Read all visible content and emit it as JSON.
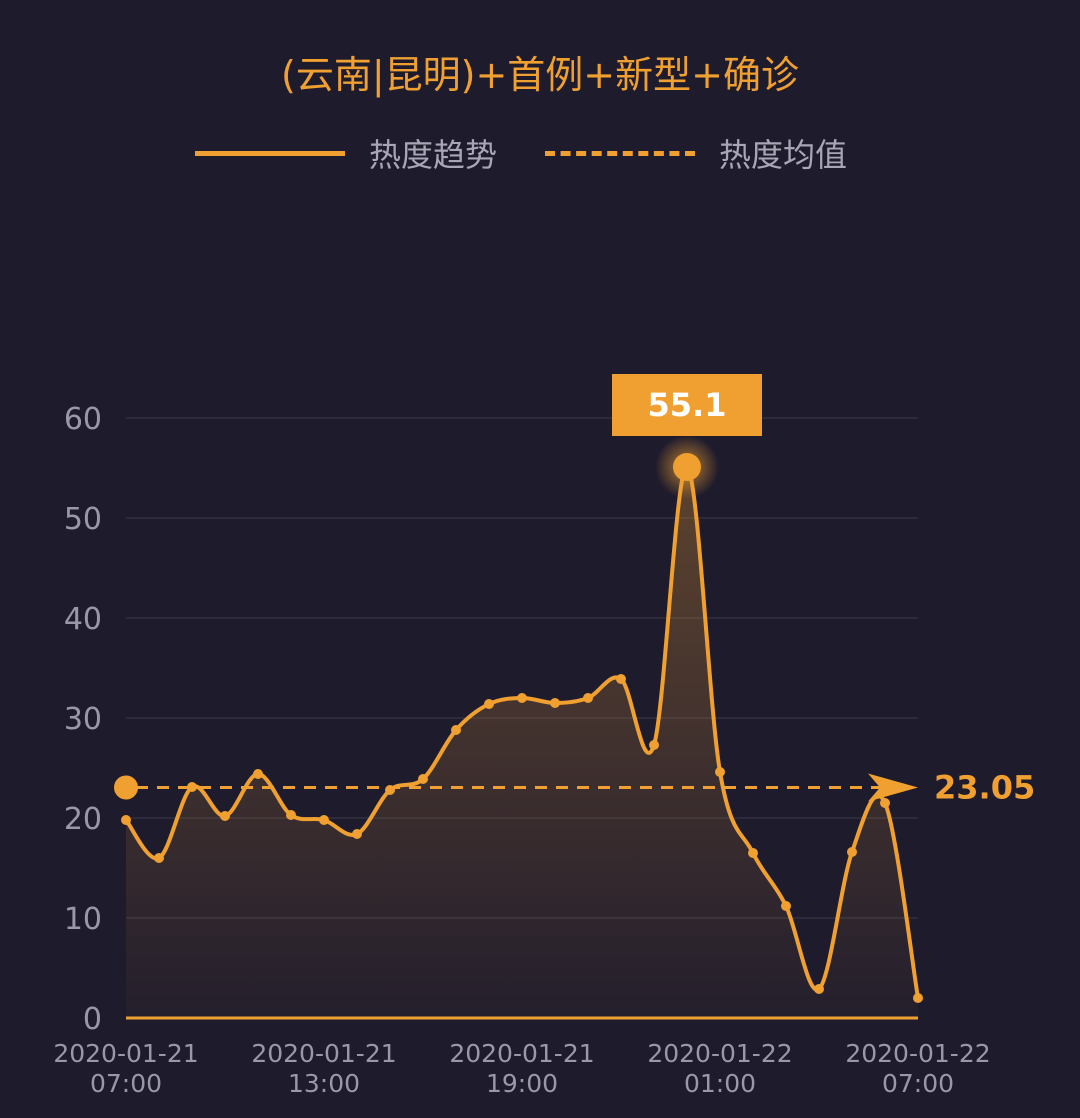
{
  "title": "(云南|昆明)+首例+新型+确诊",
  "legend": {
    "trend_label": "热度趋势",
    "average_label": "热度均值"
  },
  "colors": {
    "accent": "#f0a030",
    "background": "#1e1b2d",
    "grid": "#2c2a3c",
    "axis_text": "#9a98a8"
  },
  "chart_data": {
    "type": "area",
    "title": "(云南|昆明)+首例+新型+确诊",
    "xlabel": "",
    "ylabel": "",
    "ylim": [
      0,
      60
    ],
    "y_ticks": [
      0,
      10,
      20,
      30,
      40,
      50,
      60
    ],
    "x_ticks": [
      {
        "index": 0,
        "label_date": "2020-01-21",
        "label_time": "07:00"
      },
      {
        "index": 6,
        "label_date": "2020-01-21",
        "label_time": "13:00"
      },
      {
        "index": 12,
        "label_date": "2020-01-21",
        "label_time": "19:00"
      },
      {
        "index": 18,
        "label_date": "2020-01-22",
        "label_time": "01:00"
      },
      {
        "index": 24,
        "label_date": "2020-01-22",
        "label_time": "07:00"
      }
    ],
    "grid": true,
    "series": [
      {
        "name": "热度趋势",
        "x": [
          "2020-01-21 07:00",
          "2020-01-21 08:00",
          "2020-01-21 09:00",
          "2020-01-21 10:00",
          "2020-01-21 11:00",
          "2020-01-21 12:00",
          "2020-01-21 13:00",
          "2020-01-21 14:00",
          "2020-01-21 15:00",
          "2020-01-21 16:00",
          "2020-01-21 17:00",
          "2020-01-21 18:00",
          "2020-01-21 19:00",
          "2020-01-21 20:00",
          "2020-01-21 21:00",
          "2020-01-21 22:00",
          "2020-01-21 23:00",
          "2020-01-22 00:00",
          "2020-01-22 01:00",
          "2020-01-22 02:00",
          "2020-01-22 03:00",
          "2020-01-22 04:00",
          "2020-01-22 05:00",
          "2020-01-22 06:00",
          "2020-01-22 07:00"
        ],
        "values": [
          19.8,
          16.0,
          23.1,
          20.2,
          24.4,
          20.3,
          19.8,
          18.4,
          22.8,
          23.9,
          28.8,
          31.4,
          32.0,
          31.5,
          32.0,
          33.9,
          27.3,
          55.1,
          24.6,
          16.5,
          11.2,
          2.9,
          16.6,
          21.5,
          2.0
        ]
      },
      {
        "name": "热度均值",
        "type": "dashed-line",
        "value": 23.05
      }
    ],
    "annotations": {
      "peak_label": "55.1",
      "peak_index": 17,
      "average_label": "23.05"
    }
  }
}
